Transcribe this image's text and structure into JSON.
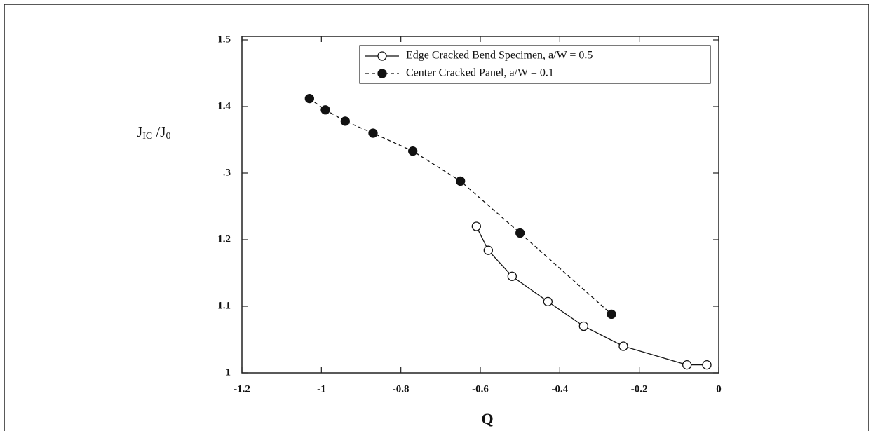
{
  "chart_data": {
    "type": "line",
    "ylabel": [
      "J",
      "IC",
      " /J",
      "0"
    ],
    "xlabel": "Q",
    "xlim": [
      -1.2,
      0
    ],
    "xticks": [
      -1.2,
      -1,
      -0.8,
      -0.6,
      -0.4,
      -0.2,
      0
    ],
    "ylim": [
      1,
      1.5
    ],
    "yticks": [
      1,
      1.1,
      1.2,
      {
        "value": 1.3,
        "label": ".3"
      },
      1.4,
      1.5
    ],
    "legend": "upper right",
    "series": [
      {
        "name": "Edge Cracked Bend Specimen, a/W = 0.5",
        "color": "#111111",
        "marker": "open",
        "linestyle": "solid",
        "x": [
          -0.61,
          -0.58,
          -0.52,
          -0.43,
          -0.34,
          -0.24,
          -0.08,
          -0.03
        ],
        "values": [
          1.22,
          1.184,
          1.145,
          1.107,
          1.07,
          1.04,
          1.012,
          1.012
        ]
      },
      {
        "name": "Center Cracked Panel, a/W = 0.1",
        "color": "#111111",
        "marker": "filled",
        "linestyle": "dashed",
        "x": [
          -1.03,
          -0.99,
          -0.94,
          -0.87,
          -0.77,
          -0.65,
          -0.5,
          -0.27
        ],
        "values": [
          1.412,
          1.395,
          1.378,
          1.36,
          1.333,
          1.288,
          1.21,
          1.088
        ]
      }
    ]
  }
}
